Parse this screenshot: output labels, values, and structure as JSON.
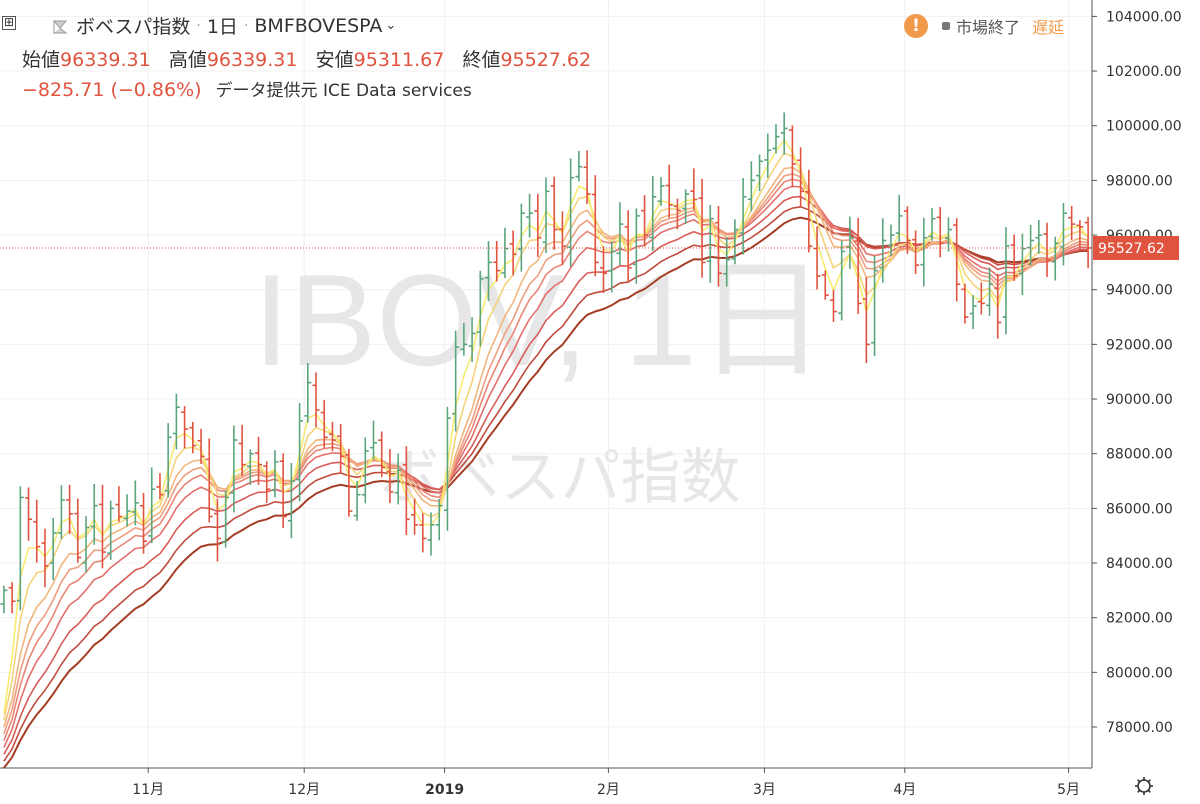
{
  "header": {
    "expand_symbol": "⊞",
    "name": "ボベスパ指数",
    "dot": "·",
    "interval": "1日",
    "symbol": "BMFBOVESPA",
    "open_label": "始値",
    "open_value": "96339.31",
    "high_label": "高値",
    "high_value": "96339.31",
    "low_label": "安値",
    "low_value": "95311.67",
    "close_label": "終値",
    "close_value": "95527.62",
    "change": "−825.71 (−0.86%)",
    "provider": "データ提供元 ICE Data services"
  },
  "status": {
    "warning_icon": "!",
    "market": "市場終了",
    "delay": "遅延"
  },
  "watermark": {
    "line1": "IBOV, 1日",
    "line2": "ボベスパ指数"
  },
  "icons": {
    "flag": "flag-icon",
    "settings": "gear-icon",
    "expand": "expand-icon"
  },
  "colors": {
    "up": "#5aa57e",
    "down": "#e0533f",
    "last_price_bg": "#e0533f",
    "ribbon": [
      "#f7ec6f",
      "#f5d37a",
      "#f2b67e",
      "#ef9d7f",
      "#ea8676",
      "#e4706d",
      "#d95c58",
      "#c04c3e",
      "#a53d25"
    ]
  },
  "chart_data": {
    "type": "candlestick",
    "title": "ボベスパ指数 · 1日 · BMFBOVESPA",
    "y_axis": {
      "ticks": [
        "78000.00",
        "80000.00",
        "82000.00",
        "84000.00",
        "86000.00",
        "88000.00",
        "90000.00",
        "92000.00",
        "94000.00",
        "96000.00",
        "98000.00",
        "100000.00",
        "102000.00",
        "104000.00"
      ],
      "range": [
        76500,
        104600
      ]
    },
    "x_axis": {
      "ticks": [
        {
          "label": "11月",
          "day": 33
        },
        {
          "label": "12月",
          "day": 53
        },
        {
          "label": "2019",
          "day": 71
        },
        {
          "label": "2月",
          "day": 92
        },
        {
          "label": "3月",
          "day": 112
        },
        {
          "label": "4月",
          "day": 130
        },
        {
          "label": "5月",
          "day": 151
        }
      ],
      "day_range": [
        14,
        154
      ]
    },
    "last_price": "95527.62",
    "last_price_value": 95527.62,
    "close_series": [
      83000,
      82600,
      86400,
      85600,
      84600,
      83900,
      85100,
      86300,
      85800,
      84200,
      85300,
      86100,
      84400,
      86000,
      85700,
      85900,
      86200,
      84800,
      86700,
      86500,
      88600,
      89700,
      88900,
      88300,
      87900,
      85700,
      84900,
      86400,
      88500,
      87600,
      88000,
      87600,
      86700,
      87700,
      85700,
      87000,
      89200,
      90600,
      89600,
      88600,
      88500,
      87900,
      85900,
      86500,
      88100,
      88400,
      87500,
      86600,
      87400,
      85600,
      85400,
      84900,
      85400,
      86100,
      89300,
      91900,
      92000,
      92400,
      94400,
      95000,
      94700,
      95500,
      95300,
      96800,
      96800,
      95900,
      97600,
      96200,
      95600,
      98100,
      98500,
      97500,
      95000,
      94600,
      95400,
      96400,
      94800,
      96700,
      96000,
      97400,
      97800,
      97100,
      96900,
      97500,
      97300,
      95000,
      96600,
      94600,
      95100,
      96200,
      97400,
      98000,
      98700,
      99100,
      99600,
      99900,
      98600,
      97600,
      95600,
      94500,
      93800,
      93200,
      95400,
      95900,
      93500,
      92000,
      94700,
      95800,
      96000,
      96700,
      95800,
      94900,
      95900,
      96600,
      95700,
      96200,
      94200,
      93000,
      93400,
      93500,
      94200,
      92800,
      95600,
      94500,
      95500,
      95800,
      96000,
      95100,
      95700,
      96800,
      96400,
      96300,
      95528
    ],
    "ribbon_ma_periods": [
      3,
      5,
      8,
      10,
      12,
      15,
      20,
      25,
      30
    ]
  }
}
